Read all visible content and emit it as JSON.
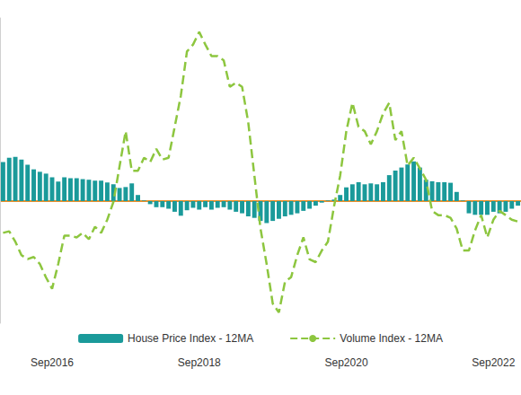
{
  "chart_data": {
    "type": "bar",
    "categories": [
      null,
      null,
      null,
      null,
      null,
      null,
      null,
      null,
      "Sep2016",
      null,
      null,
      null,
      null,
      null,
      null,
      null,
      null,
      null,
      null,
      null,
      null,
      null,
      null,
      null,
      null,
      null,
      null,
      null,
      null,
      null,
      null,
      null,
      "Sep2018",
      null,
      null,
      null,
      null,
      null,
      null,
      null,
      null,
      null,
      null,
      null,
      null,
      null,
      null,
      null,
      null,
      null,
      null,
      null,
      null,
      null,
      null,
      null,
      "Sep2020",
      null,
      null,
      null,
      null,
      null,
      null,
      null,
      null,
      null,
      null,
      null,
      null,
      null,
      null,
      null,
      null,
      null,
      null,
      null,
      null,
      null,
      null,
      null,
      "Sep2022",
      null,
      null,
      null,
      null
    ],
    "series": [
      {
        "name": "House Price Index - 12MA",
        "type": "bar",
        "color": "#1a9a9a",
        "values": [
          1.28,
          1.42,
          1.45,
          1.36,
          1.19,
          1.04,
          0.96,
          0.9,
          0.78,
          0.64,
          0.78,
          0.75,
          0.75,
          0.72,
          0.7,
          0.67,
          0.67,
          0.61,
          0.55,
          0.43,
          0.46,
          0.58,
          0.2,
          0.02,
          -0.1,
          -0.2,
          -0.2,
          -0.25,
          -0.35,
          -0.48,
          -0.3,
          -0.22,
          -0.28,
          -0.2,
          -0.28,
          -0.22,
          -0.2,
          -0.28,
          -0.35,
          -0.4,
          -0.5,
          -0.55,
          -0.65,
          -0.72,
          -0.65,
          -0.58,
          -0.5,
          -0.45,
          -0.4,
          -0.32,
          -0.25,
          -0.15,
          -0.05,
          0.02,
          0.05,
          0.2,
          0.45,
          0.55,
          0.62,
          0.55,
          0.58,
          0.55,
          0.62,
          0.85,
          1.0,
          1.1,
          1.2,
          1.3,
          1.1,
          0.7,
          0.65,
          0.62,
          0.62,
          0.6,
          0.3,
          0.02,
          -0.4,
          -0.45,
          -0.45,
          -0.45,
          -0.35,
          -0.4,
          -0.35,
          -0.25,
          -0.15
        ]
      },
      {
        "name": "Volume Index - 12MA",
        "type": "line",
        "color": "#8dc63f",
        "line_style": "dashed",
        "values": [
          -1.04,
          -0.99,
          -1.33,
          -1.77,
          -1.9,
          -1.83,
          -2.06,
          -2.5,
          -2.87,
          -2.06,
          -1.13,
          -1.13,
          -1.19,
          -1.04,
          -1.25,
          -0.84,
          -1.04,
          -0.61,
          -0.03,
          1.13,
          2.29,
          0.99,
          0.99,
          1.42,
          1.28,
          1.71,
          1.36,
          1.42,
          2.43,
          3.45,
          4.9,
          5.13,
          5.54,
          5.13,
          4.75,
          4.75,
          4.61,
          3.74,
          3.88,
          3.74,
          2.58,
          0.84,
          -0.9,
          -2.06,
          -3.36,
          -3.65,
          -2.64,
          -2.49,
          -1.77,
          -1.19,
          -1.91,
          -2.0,
          -1.62,
          -1.33,
          -0.17,
          0.84,
          2.29,
          3.22,
          2.43,
          2.29,
          1.86,
          2.29,
          2.87,
          3.22,
          2.0,
          2.29,
          1.16,
          1.42,
          1.07,
          0.7,
          -0.32,
          -0.46,
          -0.46,
          -0.55,
          -0.9,
          -1.62,
          -1.62,
          -0.96,
          -0.46,
          -1.19,
          -0.61,
          -0.32,
          -0.46,
          -0.61,
          -0.67
        ]
      }
    ],
    "ylim": [
      -4,
      6
    ],
    "yticks": [
      0
    ],
    "grid": true,
    "legend": "bottom",
    "tick_labels": "x"
  }
}
